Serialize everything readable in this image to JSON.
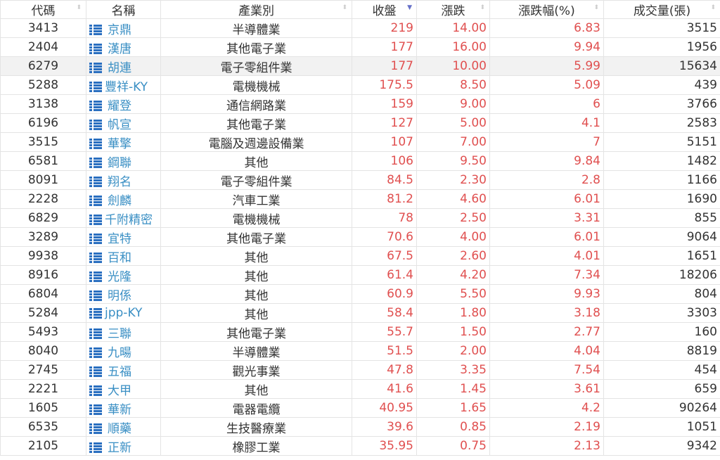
{
  "headers": [
    "代碼",
    "名稱",
    "產業別",
    "收盤",
    "漲跌",
    "漲跌幅(%)",
    "成交量(張)"
  ],
  "sort_column": "收盤",
  "colors": {
    "up": "#e05050",
    "link": "#3a8fc4",
    "icon": "#2a6fc0"
  },
  "highlighted_row": 2,
  "rows": [
    [
      "3413",
      "京鼎",
      "半導體業",
      "219",
      "14.00",
      "6.83",
      "3515"
    ],
    [
      "2404",
      "漢唐",
      "其他電子業",
      "177",
      "16.00",
      "9.94",
      "1956"
    ],
    [
      "6279",
      "胡連",
      "電子零組件業",
      "177",
      "10.00",
      "5.99",
      "15634"
    ],
    [
      "5288",
      "豐祥-KY",
      "電機機械",
      "175.5",
      "8.50",
      "5.09",
      "439"
    ],
    [
      "3138",
      "耀登",
      "通信網路業",
      "159",
      "9.00",
      "6",
      "3766"
    ],
    [
      "6196",
      "帆宣",
      "其他電子業",
      "127",
      "5.00",
      "4.1",
      "2583"
    ],
    [
      "3515",
      "華擎",
      "電腦及週邊設備業",
      "107",
      "7.00",
      "7",
      "5151"
    ],
    [
      "6581",
      "鋼聯",
      "其他",
      "106",
      "9.50",
      "9.84",
      "1482"
    ],
    [
      "8091",
      "翔名",
      "電子零組件業",
      "84.5",
      "2.30",
      "2.8",
      "1166"
    ],
    [
      "2228",
      "劍麟",
      "汽車工業",
      "81.2",
      "4.60",
      "6.01",
      "1690"
    ],
    [
      "6829",
      "千附精密",
      "電機機械",
      "78",
      "2.50",
      "3.31",
      "855"
    ],
    [
      "3289",
      "宜特",
      "其他電子業",
      "70.6",
      "4.00",
      "6.01",
      "9064"
    ],
    [
      "9938",
      "百和",
      "其他",
      "67.5",
      "2.60",
      "4.01",
      "1651"
    ],
    [
      "8916",
      "光隆",
      "其他",
      "61.4",
      "4.20",
      "7.34",
      "18206"
    ],
    [
      "6804",
      "明係",
      "其他",
      "60.9",
      "5.50",
      "9.93",
      "804"
    ],
    [
      "5284",
      "jpp-KY",
      "其他",
      "58.4",
      "1.80",
      "3.18",
      "3303"
    ],
    [
      "5493",
      "三聯",
      "其他電子業",
      "55.7",
      "1.50",
      "2.77",
      "160"
    ],
    [
      "8040",
      "九暘",
      "半導體業",
      "51.5",
      "2.00",
      "4.04",
      "8819"
    ],
    [
      "2745",
      "五福",
      "觀光事業",
      "47.8",
      "3.35",
      "7.54",
      "454"
    ],
    [
      "2221",
      "大甲",
      "其他",
      "41.6",
      "1.45",
      "3.61",
      "659"
    ],
    [
      "1605",
      "華新",
      "電器電纜",
      "40.95",
      "1.65",
      "4.2",
      "90264"
    ],
    [
      "6535",
      "順藥",
      "生技醫療業",
      "39.6",
      "0.85",
      "2.19",
      "1051"
    ],
    [
      "2105",
      "正新",
      "橡膠工業",
      "35.95",
      "0.75",
      "2.13",
      "9342"
    ]
  ]
}
